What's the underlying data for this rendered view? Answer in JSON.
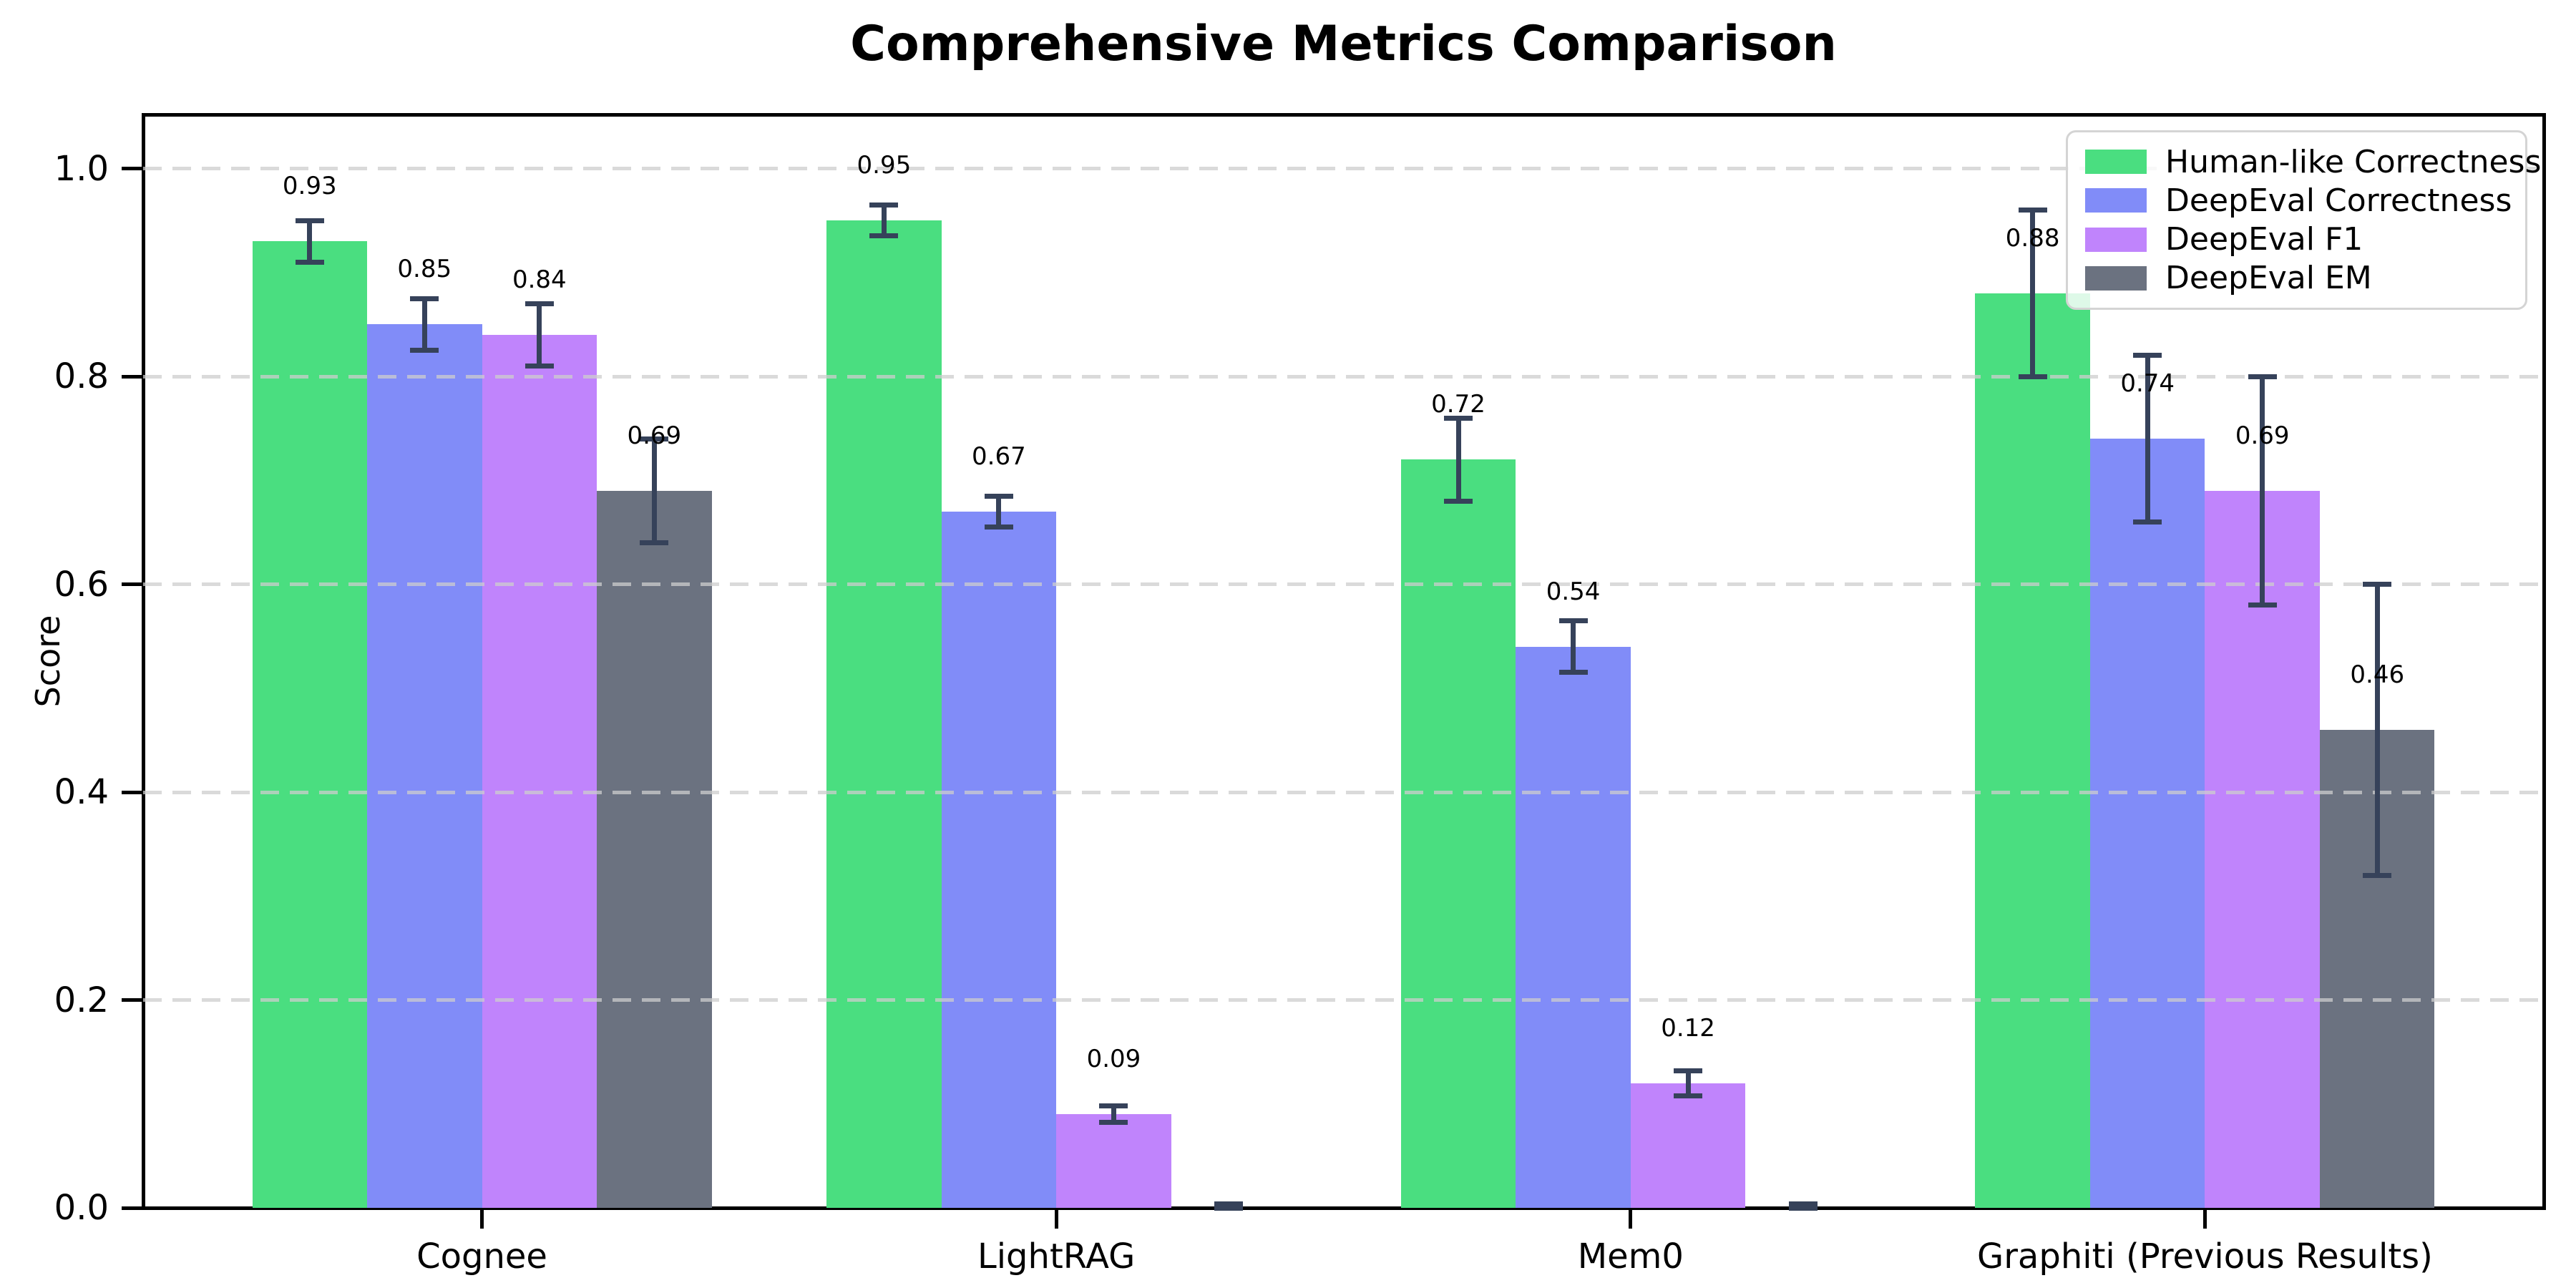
{
  "chart_data": {
    "type": "bar",
    "title": "Comprehensive Metrics Comparison",
    "xlabel": "",
    "ylabel": "Score",
    "categories": [
      "Cognee",
      "LightRAG",
      "Mem0",
      "Graphiti (Previous Results)"
    ],
    "series": [
      {
        "name": "Human-like Correctness",
        "color": "#4ade80",
        "values": [
          0.93,
          0.95,
          0.72,
          0.88
        ],
        "errors": [
          0.02,
          0.015,
          0.04,
          0.08
        ]
      },
      {
        "name": "DeepEval Correctness",
        "color": "#818cf8",
        "values": [
          0.85,
          0.67,
          0.54,
          0.74
        ],
        "errors": [
          0.025,
          0.015,
          0.025,
          0.08
        ]
      },
      {
        "name": "DeepEval F1",
        "color": "#c084fc",
        "values": [
          0.84,
          0.09,
          0.12,
          0.69
        ],
        "errors": [
          0.03,
          0.008,
          0.012,
          0.11
        ]
      },
      {
        "name": "DeepEval EM",
        "color": "#6b7280",
        "values": [
          0.69,
          0.0,
          0.0,
          0.46
        ],
        "errors": [
          0.05,
          0.004,
          0.004,
          0.14
        ]
      }
    ],
    "y_ticks": [
      0.0,
      0.2,
      0.4,
      0.6,
      0.8,
      1.0
    ],
    "y_tick_labels": [
      "0.0",
      "0.2",
      "0.4",
      "0.6",
      "0.8",
      "1.0"
    ],
    "ylim": [
      0,
      1.052
    ],
    "xlim": [
      -0.59,
      3.59
    ],
    "bar_width": 0.2,
    "grid": "horizontal-dashed",
    "grid_on": true,
    "legend_position": "top-right",
    "value_label_decimals": 2,
    "colors": {
      "error_bar": "#36425a",
      "grid": "#cdcdcd",
      "axis": "#000000",
      "legend_border": "#d4d4d4",
      "title": "#000000",
      "background": "#ffffff"
    }
  }
}
